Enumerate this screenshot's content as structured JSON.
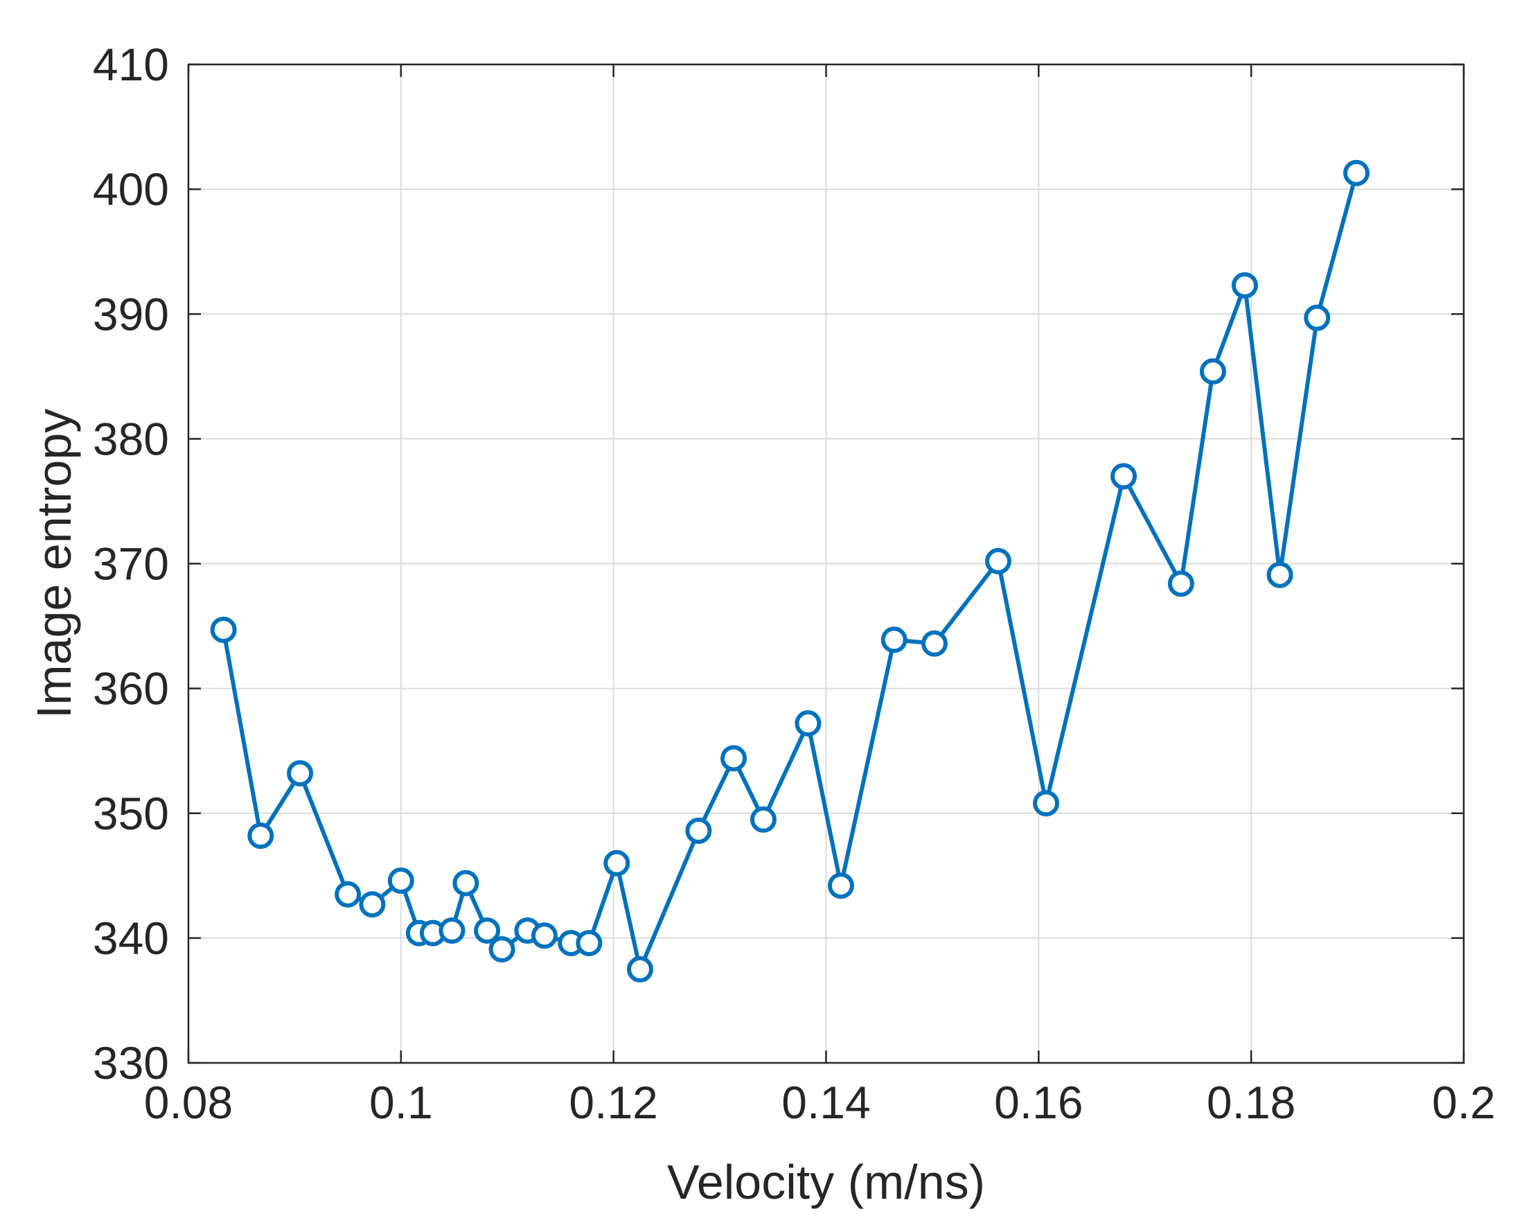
{
  "chart_data": {
    "type": "line",
    "title": "",
    "xlabel": "Velocity (m/ns)",
    "ylabel": "Image entropy",
    "xlim": [
      0.08,
      0.2
    ],
    "ylim": [
      330,
      410
    ],
    "xticks": [
      0.08,
      0.1,
      0.12,
      0.14,
      0.16,
      0.18,
      0.2
    ],
    "xtick_labels": [
      "0.08",
      "0.1",
      "0.12",
      "0.14",
      "0.16",
      "0.18",
      "0.2"
    ],
    "yticks": [
      330,
      340,
      350,
      360,
      370,
      380,
      390,
      400,
      410
    ],
    "ytick_labels": [
      "330",
      "340",
      "350",
      "360",
      "370",
      "380",
      "390",
      "400",
      "410"
    ],
    "grid": true,
    "legend": "none",
    "marker": "open-circle",
    "series": [
      {
        "color": "#0072BD",
        "points": [
          [
            0.0833,
            364.7
          ],
          [
            0.0868,
            348.2
          ],
          [
            0.0905,
            353.2
          ],
          [
            0.095,
            343.5
          ],
          [
            0.0973,
            342.7
          ],
          [
            0.1,
            344.6
          ],
          [
            0.1017,
            340.4
          ],
          [
            0.103,
            340.4
          ],
          [
            0.1048,
            340.6
          ],
          [
            0.1061,
            344.4
          ],
          [
            0.1081,
            340.6
          ],
          [
            0.1095,
            339.1
          ],
          [
            0.1119,
            340.6
          ],
          [
            0.1135,
            340.2
          ],
          [
            0.116,
            339.6
          ],
          [
            0.1177,
            339.6
          ],
          [
            0.1203,
            346.0
          ],
          [
            0.1225,
            337.5
          ],
          [
            0.128,
            348.6
          ],
          [
            0.1313,
            354.4
          ],
          [
            0.1341,
            349.5
          ],
          [
            0.1383,
            357.2
          ],
          [
            0.1414,
            344.2
          ],
          [
            0.1464,
            363.9
          ],
          [
            0.1502,
            363.6
          ],
          [
            0.1562,
            370.2
          ],
          [
            0.1607,
            350.8
          ],
          [
            0.168,
            377.0
          ],
          [
            0.1734,
            368.4
          ],
          [
            0.1764,
            385.4
          ],
          [
            0.1794,
            392.3
          ],
          [
            0.1827,
            369.1
          ],
          [
            0.1862,
            389.7
          ],
          [
            0.1899,
            401.3
          ]
        ]
      }
    ]
  }
}
